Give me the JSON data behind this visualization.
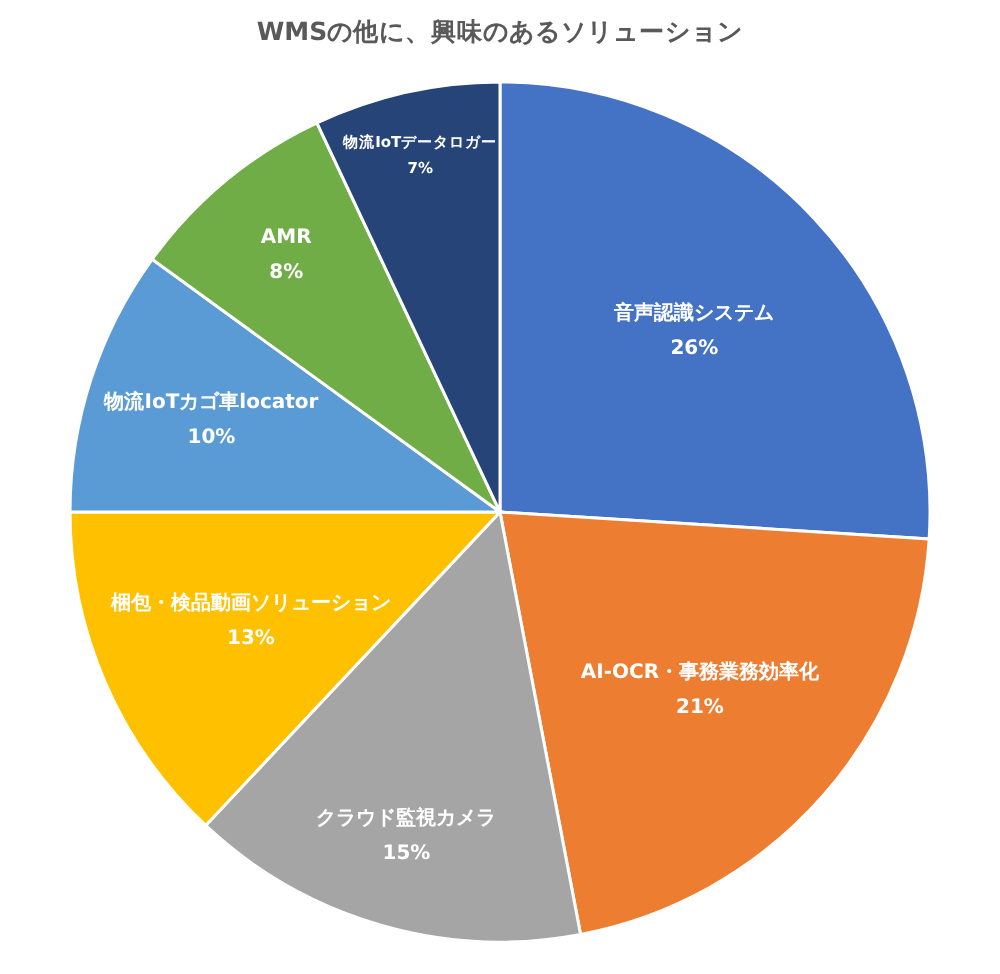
{
  "chart_data": {
    "type": "pie",
    "title": "WMSの他に、興味のあるソリューション",
    "categories": [
      "音声認識システム",
      "AI-OCR・事務業務効率化",
      "クラウド監視カメラ",
      "梱包・検品動画ソリューション",
      "物流IoTカゴ車locator",
      "AMR",
      "物流IoTデータロガー"
    ],
    "values": [
      26,
      21,
      15,
      13,
      10,
      8,
      7
    ],
    "value_labels": [
      "26%",
      "21%",
      "15%",
      "13%",
      "10%",
      "8%",
      "7%"
    ],
    "colors": [
      "#4472c4",
      "#ed7d31",
      "#a5a5a5",
      "#ffc000",
      "#5b9bd5",
      "#70ad47",
      "#264478"
    ]
  }
}
